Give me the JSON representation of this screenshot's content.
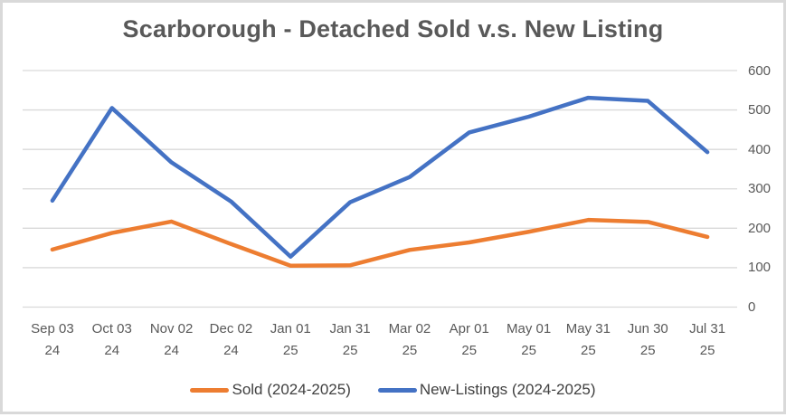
{
  "chart_data": {
    "type": "line",
    "title": "Scarborough - Detached Sold v.s. New Listing",
    "categories": [
      "Sep 03 24",
      "Oct 03 24",
      "Nov 02 24",
      "Dec 02 24",
      "Jan 01 25",
      "Jan 31 25",
      "Mar 02 25",
      "Apr 01 25",
      "May 01 25",
      "May 31 25",
      "Jun 30 25",
      "Jul 31 25"
    ],
    "series": [
      {
        "name": "Sold (2024-2025)",
        "color": "#ED7D31",
        "values": [
          146,
          188,
          217,
          160,
          105,
          106,
          145,
          164,
          191,
          221,
          216,
          178
        ]
      },
      {
        "name": "New-Listings (2024-2025)",
        "color": "#4472C4",
        "values": [
          270,
          505,
          367,
          268,
          128,
          266,
          330,
          443,
          483,
          531,
          523,
          393
        ]
      }
    ],
    "y_axis": {
      "side": "right",
      "min": 0,
      "max": 600,
      "ticks": [
        0,
        100,
        200,
        300,
        400,
        500,
        600
      ]
    },
    "x_axis": {
      "label_lines": 2
    },
    "grid": true,
    "legend_position": "bottom",
    "colors": {
      "background": "#FFFFFF",
      "border": "#D9D9D9",
      "grid": "#D9D9D9",
      "title": "#595959",
      "axis_label": "#595959",
      "legend_text": "#404040"
    }
  }
}
